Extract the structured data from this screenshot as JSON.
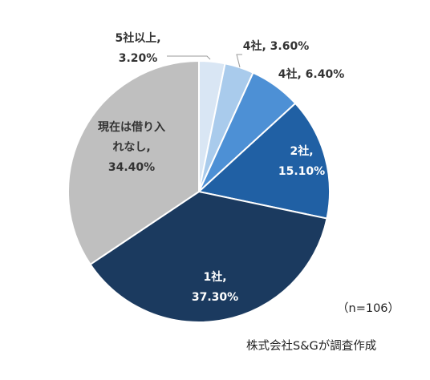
{
  "chart_data": {
    "type": "pie",
    "slices": [
      {
        "line1": "5社以上,",
        "line2": "3.20%",
        "value": 3.2,
        "color": "#d9e6f4",
        "label_color": "#333333"
      },
      {
        "line1": "4社, 3.60%",
        "line2": "",
        "value": 3.6,
        "color": "#a9cbec",
        "label_color": "#333333"
      },
      {
        "line1": "4社, 6.40%",
        "line2": "",
        "value": 6.4,
        "color": "#4d90d5",
        "label_color": "#333333"
      },
      {
        "line1": "2社,",
        "line2": "15.10%",
        "value": 15.1,
        "color": "#2060a4",
        "label_color": "#ffffff"
      },
      {
        "line1": "1社,",
        "line2": "37.30%",
        "value": 37.3,
        "color": "#1b3a5f",
        "label_color": "#ffffff"
      },
      {
        "line1": "現在は借り入",
        "line2": "れなし,",
        "line3": "34.40%",
        "value": 34.4,
        "color": "#bfbfbf",
        "label_color": "#333333"
      }
    ]
  },
  "notes": {
    "sample_size": "（n=106）",
    "source": "株式会社S&Gが調査作成"
  }
}
